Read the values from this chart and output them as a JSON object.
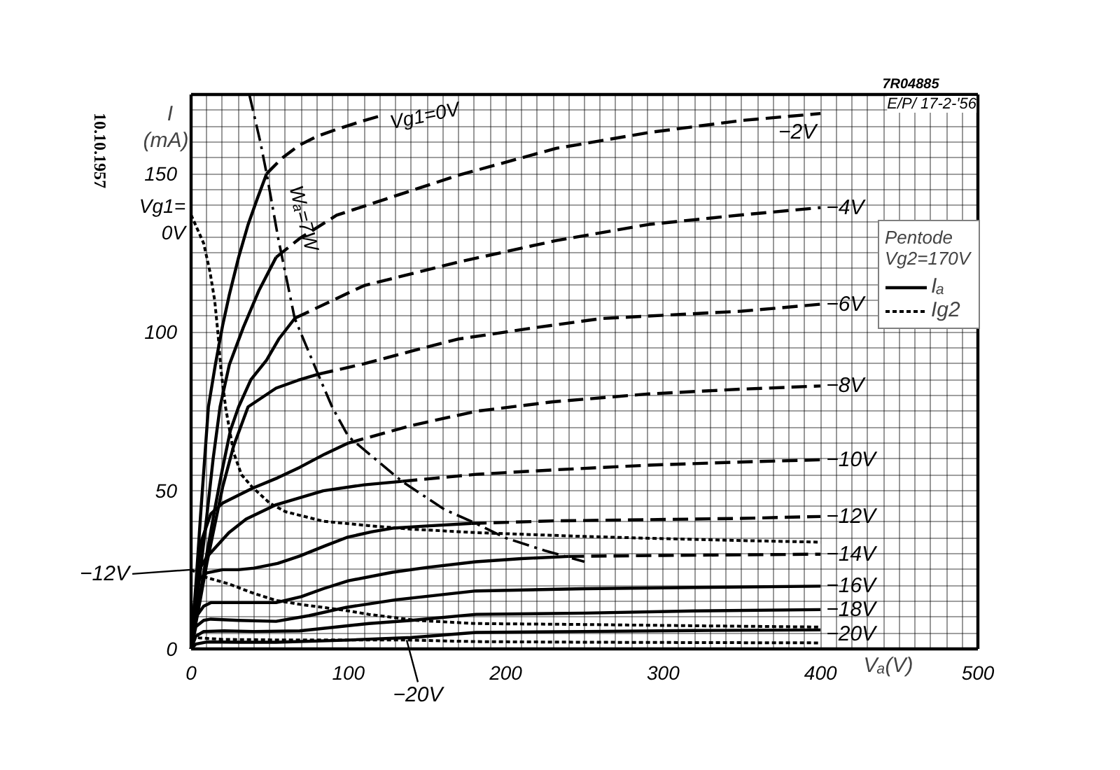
{
  "chart_data": {
    "type": "line",
    "xlabel": "Vₐ(V)",
    "ylabel": "I (mA)",
    "legend_title": "Pentode Vg2=170V",
    "legend": "right",
    "grid": true,
    "xlim": [
      0,
      500
    ],
    "ylim": [
      0,
      175
    ],
    "xticks": [
      0,
      {
        "value": 10,
        "label": null
      },
      {
        "value": 20,
        "label": null
      },
      {
        "value": 30,
        "label": null
      },
      {
        "value": 40,
        "label": null
      },
      {
        "value": 50,
        "label": null
      },
      {
        "value": 60,
        "label": null
      },
      {
        "value": 70,
        "label": null
      },
      {
        "value": 80,
        "label": null
      },
      {
        "value": 90,
        "label": null
      },
      100,
      {
        "value": 110,
        "label": null
      },
      {
        "value": 120,
        "label": null
      },
      {
        "value": 130,
        "label": null
      },
      {
        "value": 140,
        "label": null
      },
      {
        "value": 150,
        "label": null
      },
      {
        "value": 160,
        "label": null
      },
      {
        "value": 170,
        "label": null
      },
      {
        "value": 180,
        "label": null
      },
      {
        "value": 190,
        "label": null
      },
      200,
      {
        "value": 210,
        "label": null
      },
      {
        "value": 220,
        "label": null
      },
      {
        "value": 230,
        "label": null
      },
      {
        "value": 240,
        "label": null
      },
      {
        "value": 250,
        "label": null
      },
      {
        "value": 260,
        "label": null
      },
      {
        "value": 270,
        "label": null
      },
      {
        "value": 280,
        "label": null
      },
      {
        "value": 290,
        "label": null
      },
      300,
      {
        "value": 310,
        "label": null
      },
      {
        "value": 320,
        "label": null
      },
      {
        "value": 330,
        "label": null
      },
      {
        "value": 340,
        "label": null
      },
      {
        "value": 350,
        "label": null
      },
      {
        "value": 360,
        "label": null
      },
      {
        "value": 370,
        "label": null
      },
      {
        "value": 380,
        "label": null
      },
      {
        "value": 390,
        "label": null
      },
      400,
      {
        "value": 410,
        "label": null
      },
      {
        "value": 420,
        "label": null
      },
      {
        "value": 430,
        "label": null
      },
      {
        "value": 440,
        "label": null
      },
      {
        "value": 450,
        "label": null
      },
      {
        "value": 460,
        "label": null
      },
      {
        "value": 470,
        "label": null
      },
      {
        "value": 480,
        "label": null
      },
      {
        "value": 490,
        "label": null
      },
      500
    ],
    "yticks": [
      0,
      {
        "value": 5,
        "label": null
      },
      {
        "value": 10,
        "label": null
      },
      {
        "value": 15,
        "label": null
      },
      {
        "value": 20,
        "label": null
      },
      {
        "value": 25,
        "label": null
      },
      {
        "value": 30,
        "label": null
      },
      {
        "value": 35,
        "label": null
      },
      {
        "value": 40,
        "label": null
      },
      {
        "value": 45,
        "label": null
      },
      50,
      {
        "value": 55,
        "label": null
      },
      {
        "value": 60,
        "label": null
      },
      {
        "value": 65,
        "label": null
      },
      {
        "value": 70,
        "label": null
      },
      {
        "value": 75,
        "label": null
      },
      {
        "value": 80,
        "label": null
      },
      {
        "value": 85,
        "label": null
      },
      {
        "value": 90,
        "label": null
      },
      {
        "value": 95,
        "label": null
      },
      100,
      {
        "value": 105,
        "label": null
      },
      {
        "value": 110,
        "label": null
      },
      {
        "value": 115,
        "label": null
      },
      {
        "value": 120,
        "label": null
      },
      {
        "value": 125,
        "label": null
      },
      {
        "value": 130,
        "label": null
      },
      {
        "value": 135,
        "label": null
      },
      {
        "value": 140,
        "label": null
      },
      {
        "value": 145,
        "label": null
      },
      150,
      {
        "value": 155,
        "label": null
      },
      {
        "value": 160,
        "label": null
      },
      {
        "value": 165,
        "label": null
      },
      {
        "value": 170,
        "label": null
      },
      {
        "value": 175,
        "label": null
      }
    ],
    "series": [
      {
        "name": "Iₐ",
        "color": "#000000",
        "line_style": "solid",
        "x": [
          0,
          3,
          6,
          11,
          15.4,
          20,
          24.3,
          30.2,
          36.2,
          42,
          48
        ],
        "values": [
          0,
          20,
          42,
          76.4,
          89.7,
          102,
          111.8,
          123.6,
          133.9,
          142,
          150
        ]
      },
      {
        "color": "#000000",
        "line_style": "dashed",
        "x": [
          48,
          58,
          68.8,
          80,
          92.5,
          108,
          122
        ],
        "values": [
          150,
          155,
          159,
          161.8,
          164,
          166.5,
          168.5
        ]
      },
      {
        "color": "#000000",
        "line_style": "solid",
        "x": [
          0,
          3,
          6,
          10,
          14,
          18.4,
          24.3,
          33.2,
          43,
          54
        ],
        "values": [
          0,
          12,
          25,
          42,
          60,
          76.4,
          89.7,
          101.5,
          113,
          123.6
        ]
      },
      {
        "color": "#000000",
        "line_style": "dashed",
        "x": [
          54,
          68.8,
          92.5,
          128,
          169.7,
          232,
          291,
          350,
          400
        ],
        "values": [
          123.6,
          129.5,
          136.9,
          142.7,
          149.5,
          158,
          163,
          166.8,
          169
        ]
      },
      {
        "color": "#000000",
        "line_style": "solid",
        "x": [
          0,
          3,
          6,
          10,
          15,
          20,
          25,
          30.2,
          38,
          48,
          56,
          66
        ],
        "values": [
          0,
          9,
          18,
          30,
          44,
          57,
          69,
          76.4,
          85,
          91.2,
          98,
          104.4
        ]
      },
      {
        "color": "#000000",
        "line_style": "dashed",
        "x": [
          66,
          110,
          169.7,
          232,
          291,
          350,
          400
        ],
        "values": [
          104.4,
          114.7,
          122.1,
          128.9,
          134,
          137,
          139.3
        ]
      },
      {
        "color": "#000000",
        "line_style": "solid",
        "x": [
          0,
          3,
          6,
          10,
          15,
          20,
          27,
          36.2,
          54,
          68,
          80.7
        ],
        "values": [
          0,
          8,
          16,
          27,
          39,
          51,
          64,
          76.4,
          82.3,
          84.8,
          86.7
        ]
      },
      {
        "color": "#000000",
        "line_style": "dashed",
        "x": [
          80.7,
          110,
          140,
          169.7,
          220,
          261,
          350,
          400
        ],
        "values": [
          86.7,
          90,
          94,
          97.8,
          101.5,
          104.3,
          106.6,
          108.8
        ]
      },
      {
        "color": "#000000",
        "line_style": "solid",
        "x": [
          0,
          2,
          4,
          6.5,
          12.5,
          20,
          39,
          55,
          69,
          85,
          100
        ],
        "values": [
          0,
          12,
          24,
          34,
          42.6,
          46,
          50.7,
          54,
          57.3,
          61.5,
          65
        ]
      },
      {
        "color": "#000000",
        "line_style": "dashed",
        "x": [
          100,
          140,
          181,
          230,
          291,
          350,
          400
        ],
        "values": [
          65,
          70.5,
          75,
          78,
          80.5,
          82,
          83
        ]
      },
      {
        "color": "#000000",
        "line_style": "solid",
        "x": [
          0,
          2,
          5,
          10,
          24,
          35,
          54,
          84,
          110,
          134
        ],
        "values": [
          0,
          10,
          25,
          29,
          36.7,
          41,
          45.5,
          49.9,
          51.8,
          52.9
        ]
      },
      {
        "color": "#000000",
        "line_style": "dashed",
        "x": [
          134,
          181,
          230,
          291,
          350,
          400
        ],
        "values": [
          52.9,
          55.1,
          56.5,
          58,
          59,
          59.7
        ]
      },
      {
        "color": "#000000",
        "line_style": "solid",
        "x": [
          0,
          2,
          5,
          10,
          20,
          30,
          40,
          55,
          69,
          85,
          99,
          115,
          128,
          150,
          178
        ],
        "values": [
          0,
          14,
          22,
          24,
          25,
          25,
          25.5,
          27,
          29.3,
          32.5,
          35.2,
          37,
          38.1,
          38.8,
          39.6
        ]
      },
      {
        "color": "#000000",
        "line_style": "dashed",
        "x": [
          178,
          230,
          291,
          350,
          400
        ],
        "values": [
          39.6,
          40.4,
          40.8,
          41.2,
          41.8
        ]
      },
      {
        "color": "#000000",
        "line_style": "solid",
        "x": [
          0,
          3,
          8,
          12.5,
          30,
          54,
          70,
          84,
          100,
          128,
          150,
          181,
          210,
          240
        ],
        "values": [
          0,
          10,
          13.5,
          14.6,
          14.6,
          14.6,
          16.5,
          19,
          21.5,
          24.2,
          25.7,
          27.5,
          28.5,
          29.2
        ]
      },
      {
        "color": "#000000",
        "line_style": "dashed",
        "x": [
          240,
          300,
          350,
          400
        ],
        "values": [
          29.2,
          29.5,
          29.7,
          29.9
        ]
      },
      {
        "color": "#000000",
        "line_style": "solid",
        "x": [
          0,
          3,
          8,
          12.5,
          30,
          54,
          75,
          98.5,
          130,
          181,
          250,
          320,
          400
        ],
        "values": [
          0,
          7,
          9,
          9.4,
          9,
          8.7,
          10.5,
          13.1,
          15.5,
          18.3,
          19,
          19.4,
          19.8
        ]
      },
      {
        "color": "#000000",
        "line_style": "solid",
        "x": [
          0,
          3,
          8,
          21,
          40,
          69,
          90,
          113,
          140,
          181,
          250,
          320,
          400
        ],
        "values": [
          0,
          4,
          5.5,
          5.7,
          5.5,
          5.7,
          6.8,
          8,
          9,
          10.9,
          11.3,
          12,
          12.4
        ]
      },
      {
        "color": "#000000",
        "line_style": "solid",
        "x": [
          0,
          3,
          10,
          30,
          54,
          100,
          140,
          181,
          250,
          320,
          400
        ],
        "values": [
          0,
          1.5,
          2.2,
          2.1,
          2.1,
          2.8,
          3.6,
          5.2,
          5.5,
          5.8,
          6
        ]
      },
      {
        "name": "Ig2",
        "color": "#000000",
        "line_style": "dotted",
        "x": [
          0,
          8,
          12,
          15,
          17,
          19,
          22,
          27,
          32,
          39,
          50,
          60,
          84,
          113,
          140,
          181,
          250,
          300,
          350,
          400
        ],
        "values": [
          137,
          128,
          119,
          110,
          100,
          88,
          76,
          62,
          55,
          51,
          46,
          43.3,
          40.3,
          38.9,
          37.8,
          36.7,
          35.5,
          34.8,
          34.2,
          33.7
        ]
      },
      {
        "color": "#000000",
        "line_style": "dotted",
        "x": [
          0,
          10,
          24,
          40,
          54,
          70,
          84,
          100,
          113,
          143,
          181,
          250,
          320,
          400
        ],
        "values": [
          25,
          22.5,
          20.5,
          17.5,
          15.3,
          14,
          13.1,
          12,
          10.9,
          9,
          8,
          7.7,
          7.3,
          6.9
        ]
      },
      {
        "color": "#000000",
        "line_style": "dotted",
        "x": [
          0,
          5,
          20,
          60,
          100,
          137,
          181,
          250,
          320,
          400
        ],
        "values": [
          4,
          3.5,
          3,
          2.8,
          2.8,
          2.8,
          2.3,
          2.1,
          2,
          1.9
        ]
      },
      {
        "color": "#000000",
        "line_style": "dashdot",
        "x": [
          37,
          44,
          48,
          55.4,
          65.8,
          80.7,
          89.6,
          100,
          134,
          161,
          181,
          200,
          225,
          250
        ],
        "values": [
          175,
          160,
          150,
          129.5,
          104.4,
          86.7,
          76.4,
          67,
          52.9,
          44,
          39.6,
          35,
          31,
          27.5
        ]
      }
    ],
    "annotations": [
      "7R04885",
      "E/P/ 17-2-'56",
      "10.10.1957",
      {
        "text": "Vg1=0V",
        "x": 122,
        "y": 168.5
      },
      {
        "text": "−2V",
        "x": 400,
        "y": 169
      },
      {
        "text": "−4V",
        "x": 400,
        "y": 139.3
      },
      {
        "text": "−6V",
        "x": 400,
        "y": 108.8
      },
      {
        "text": "−8V",
        "x": 400,
        "y": 83
      },
      {
        "text": "−10V",
        "x": 400,
        "y": 59.7
      },
      {
        "text": "−12V",
        "x": 400,
        "y": 41.8
      },
      {
        "text": "−14V",
        "x": 400,
        "y": 29.9
      },
      {
        "text": "−16V",
        "x": 400,
        "y": 19.8
      },
      {
        "text": "−18V",
        "x": 400,
        "y": 12.4
      },
      {
        "text": "−20V",
        "x": 400,
        "y": 6
      },
      {
        "text": "Wₐ=7W",
        "x": 51.5,
        "y": 136
      },
      {
        "text": "Vg1= 0V",
        "x": 0,
        "y": 137
      },
      {
        "text": "−12V",
        "x": 0,
        "y": 25
      },
      {
        "text": "−20V",
        "x": 137,
        "y": 2.8
      }
    ]
  }
}
